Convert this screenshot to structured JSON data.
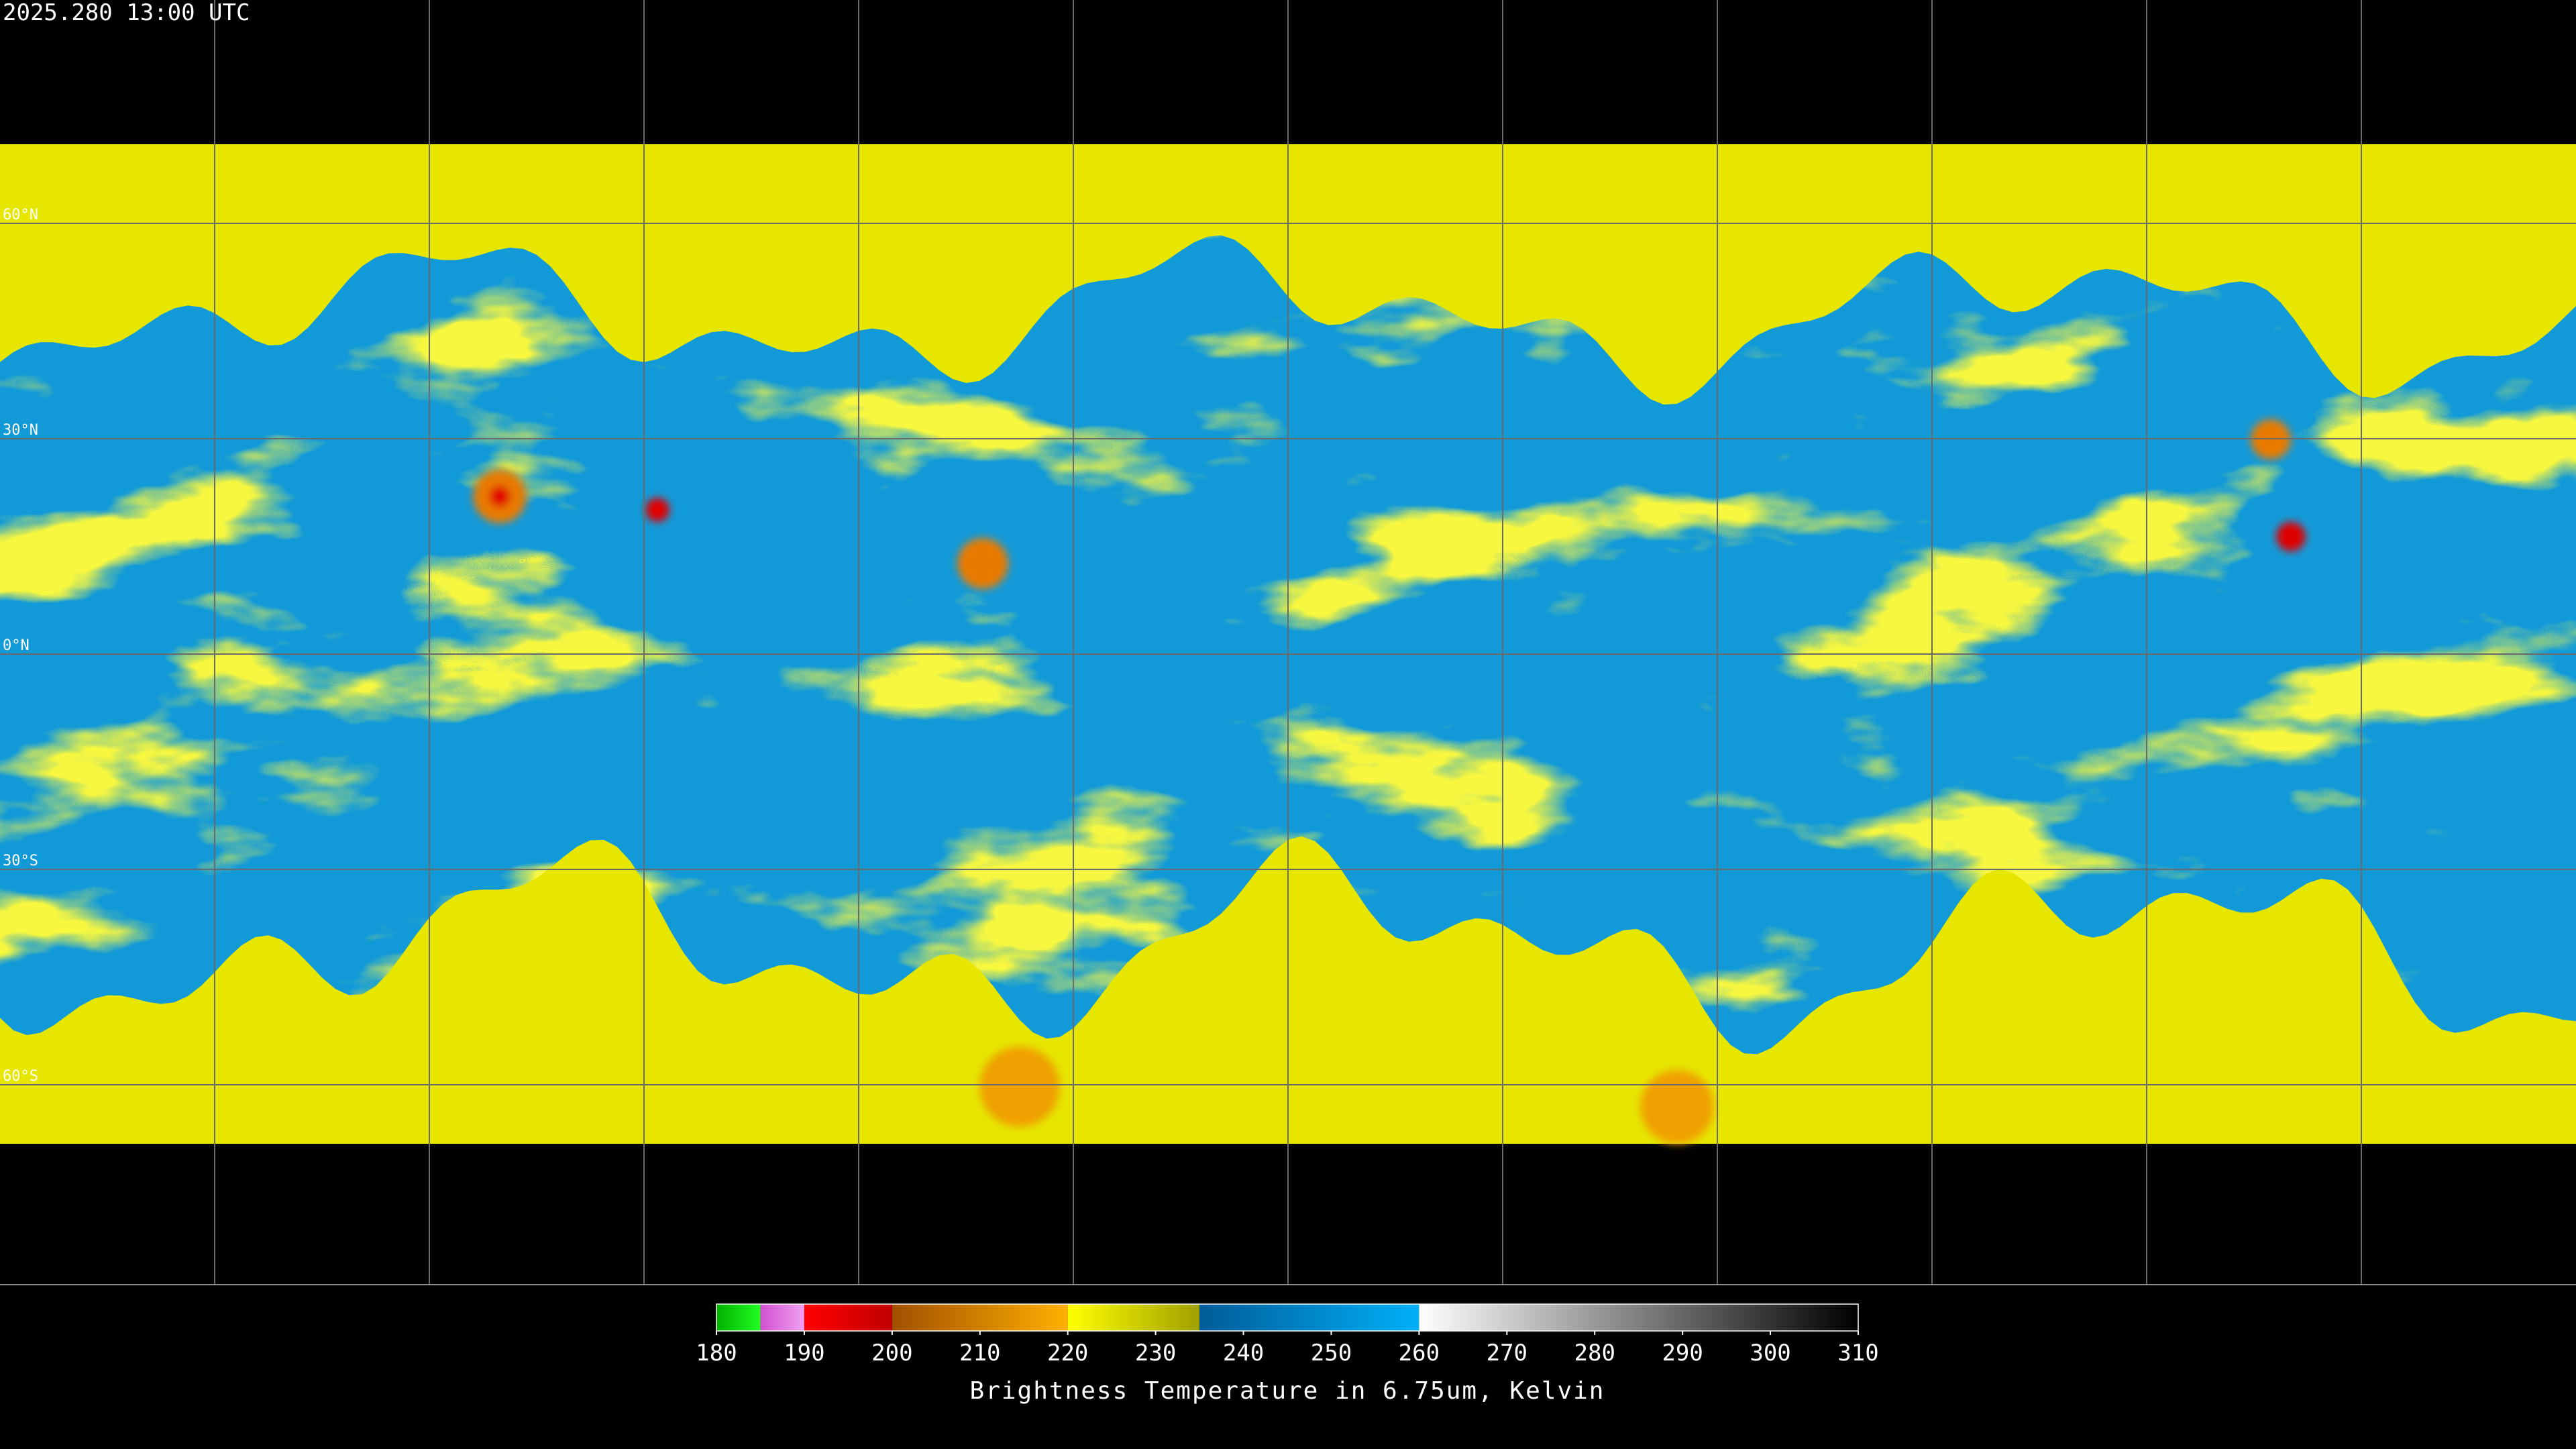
{
  "header": {
    "title": "2025.280 13:00 UTC"
  },
  "map": {
    "latitude_labels": [
      "60°N",
      "30°N",
      "0°N",
      "30°S",
      "60°S"
    ]
  },
  "colorbar": {
    "range": [
      180,
      310
    ],
    "ticks": [
      180,
      190,
      200,
      210,
      220,
      230,
      240,
      250,
      260,
      270,
      280,
      290,
      300,
      310
    ],
    "label": "Brightness Temperature in 6.75um, Kelvin",
    "stops": [
      {
        "from": 180,
        "to": 185,
        "colors": [
          "#00b000",
          "#20ff20"
        ]
      },
      {
        "from": 185,
        "to": 190,
        "colors": [
          "#d050d0",
          "#f0a0f0"
        ]
      },
      {
        "from": 190,
        "to": 200,
        "colors": [
          "#ff0000",
          "#c00000"
        ]
      },
      {
        "from": 200,
        "to": 220,
        "colors": [
          "#a05000",
          "#ffb000"
        ]
      },
      {
        "from": 220,
        "to": 235,
        "colors": [
          "#ffff00",
          "#a0a000"
        ]
      },
      {
        "from": 235,
        "to": 260,
        "colors": [
          "#005c98",
          "#00b0f8"
        ]
      },
      {
        "from": 260,
        "to": 310,
        "colors": [
          "#ffffff",
          "#000000"
        ]
      }
    ]
  }
}
